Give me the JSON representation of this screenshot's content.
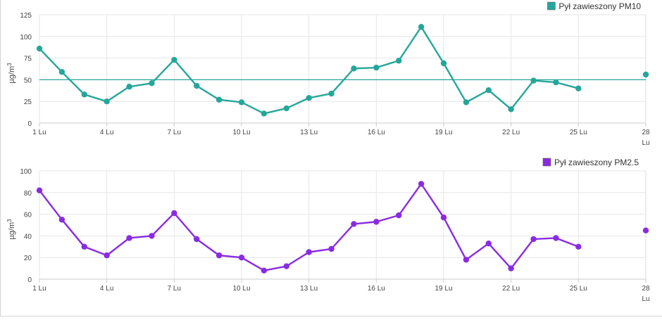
{
  "chart_data": [
    {
      "type": "line",
      "legend": "Pył zawieszony PM10",
      "legend_position": "top-right",
      "ylabel": "µg/m",
      "ylabel_sup": "3",
      "ylim": [
        0,
        125
      ],
      "yticks": [
        "0",
        "25",
        "50",
        "75",
        "100",
        "125"
      ],
      "xlim": [
        1,
        28
      ],
      "xticks": [
        {
          "x": 1,
          "label": "1 Lu"
        },
        {
          "x": 4,
          "label": "4 Lu"
        },
        {
          "x": 7,
          "label": "7 Lu"
        },
        {
          "x": 10,
          "label": "10 Lu"
        },
        {
          "x": 13,
          "label": "13 Lu"
        },
        {
          "x": 16,
          "label": "16 Lu"
        },
        {
          "x": 19,
          "label": "19 Lu"
        },
        {
          "x": 22,
          "label": "22 Lu"
        },
        {
          "x": 25,
          "label": "25 Lu"
        },
        {
          "x": 28,
          "label": "28",
          "label2": "Lu"
        }
      ],
      "threshold": 50,
      "grid": true,
      "color": "#26a69a",
      "series": [
        {
          "x": [
            1,
            2,
            3,
            4,
            5,
            6,
            7,
            8,
            9,
            10,
            11,
            12,
            13,
            14,
            15,
            16,
            17,
            18,
            19,
            20,
            21,
            22,
            23,
            24,
            25
          ],
          "values": [
            86,
            59,
            33,
            25,
            42,
            46,
            73,
            43,
            27,
            24,
            11,
            17,
            29,
            34,
            63,
            64,
            72,
            111,
            69,
            24,
            38,
            16,
            49,
            47,
            40
          ]
        }
      ],
      "extra_point": {
        "x": 28,
        "value": 56
      }
    },
    {
      "type": "line",
      "legend": "Pył zawieszony PM2.5",
      "legend_position": "top-right",
      "ylabel": "µg/m",
      "ylabel_sup": "3",
      "ylim": [
        0,
        100
      ],
      "yticks": [
        "0",
        "20",
        "40",
        "60",
        "80",
        "100"
      ],
      "xlim": [
        1,
        28
      ],
      "xticks": [
        {
          "x": 1,
          "label": "1 Lu"
        },
        {
          "x": 4,
          "label": "4 Lu"
        },
        {
          "x": 7,
          "label": "7 Lu"
        },
        {
          "x": 10,
          "label": "10 Lu"
        },
        {
          "x": 13,
          "label": "13 Lu"
        },
        {
          "x": 16,
          "label": "16 Lu"
        },
        {
          "x": 19,
          "label": "19 Lu"
        },
        {
          "x": 22,
          "label": "22 Lu"
        },
        {
          "x": 25,
          "label": "25 Lu"
        },
        {
          "x": 28,
          "label": "28",
          "label2": "Lu"
        }
      ],
      "grid": true,
      "color": "#8a2be2",
      "series": [
        {
          "x": [
            1,
            2,
            3,
            4,
            5,
            6,
            7,
            8,
            9,
            10,
            11,
            12,
            13,
            14,
            15,
            16,
            17,
            18,
            19,
            20,
            21,
            22,
            23,
            24,
            25
          ],
          "values": [
            82,
            55,
            30,
            22,
            38,
            40,
            61,
            37,
            22,
            20,
            8,
            12,
            25,
            28,
            51,
            53,
            59,
            88,
            57,
            18,
            33,
            10,
            37,
            38,
            30
          ]
        }
      ],
      "extra_point": {
        "x": 28,
        "value": 45
      }
    }
  ]
}
